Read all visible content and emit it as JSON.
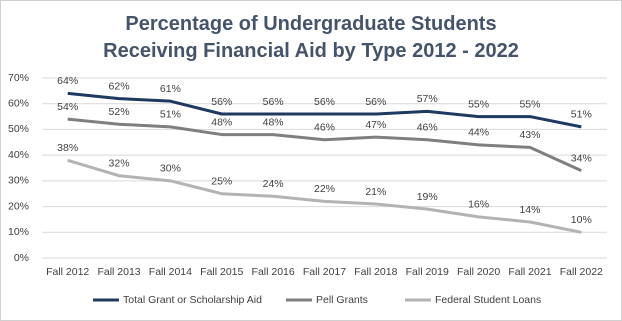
{
  "chart_data": {
    "type": "line",
    "title": "Percentage of Undergraduate Students Receiving Financial Aid by Type 2012 - 2022",
    "categories": [
      "Fall 2012",
      "Fall 2013",
      "Fall 2014",
      "Fall 2015",
      "Fall 2016",
      "Fall 2017",
      "Fall 2018",
      "Fall 2019",
      "Fall 2020",
      "Fall 2021",
      "Fall 2022"
    ],
    "series": [
      {
        "name": "Total Grant or Scholarship Aid",
        "color": "#1f3a60",
        "values": [
          64,
          62,
          61,
          56,
          56,
          56,
          56,
          57,
          55,
          55,
          51
        ],
        "value_labels": [
          "64%",
          "62%",
          "61%",
          "56%",
          "56%",
          "56%",
          "56%",
          "57%",
          "55%",
          "55%",
          "51%"
        ]
      },
      {
        "name": "Pell Grants",
        "color": "#7f7f7f",
        "values": [
          54,
          52,
          51,
          48,
          48,
          46,
          47,
          46,
          44,
          43,
          34
        ],
        "value_labels": [
          "54%",
          "52%",
          "51%",
          "48%",
          "48%",
          "46%",
          "47%",
          "46%",
          "44%",
          "43%",
          "34%"
        ]
      },
      {
        "name": "Federal Student Loans",
        "color": "#b3b3b3",
        "values": [
          38,
          32,
          30,
          25,
          24,
          22,
          21,
          19,
          16,
          14,
          10
        ],
        "value_labels": [
          "38%",
          "32%",
          "30%",
          "25%",
          "24%",
          "22%",
          "21%",
          "19%",
          "16%",
          "14%",
          "10%"
        ]
      }
    ],
    "ylim": [
      0,
      70
    ],
    "yticks": [
      {
        "value": 0,
        "label": "0%"
      },
      {
        "value": 10,
        "label": "10%"
      },
      {
        "value": 20,
        "label": "20%"
      },
      {
        "value": 30,
        "label": "30%"
      },
      {
        "value": 40,
        "label": "40%"
      },
      {
        "value": 50,
        "label": "50%"
      },
      {
        "value": 60,
        "label": "60%"
      },
      {
        "value": 70,
        "label": "70%"
      }
    ],
    "grid": true,
    "legend": "bottom"
  }
}
